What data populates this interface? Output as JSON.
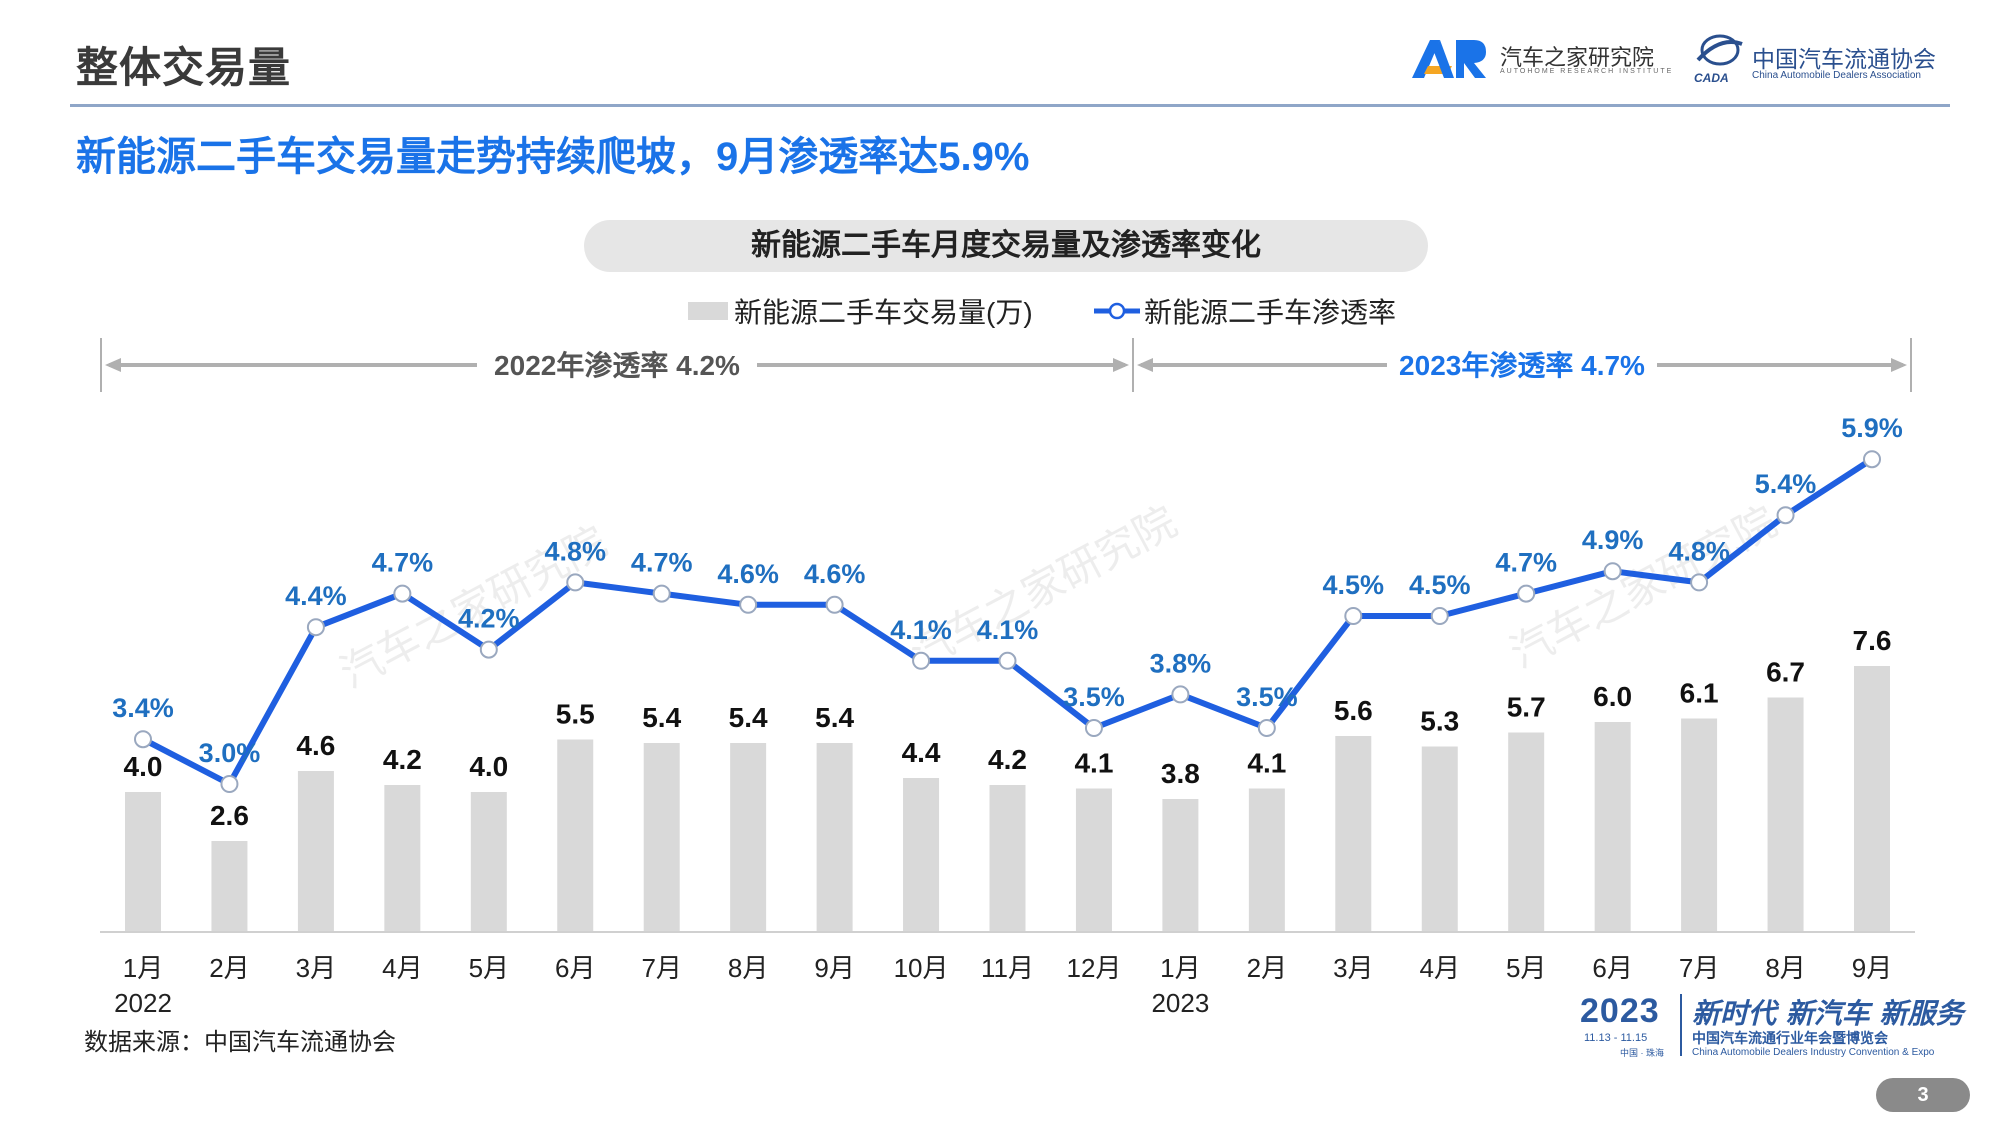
{
  "header": {
    "section_title": "整体交易量",
    "logo_ar_name": "汽车之家研究院",
    "logo_ar_en": "AUTOHOME RESEARCH INSTITUTE",
    "logo_cada_name": "中国汽车流通协会",
    "logo_cada_en": "China Automobile Dealers Association",
    "logo_cada_mark": "CADA"
  },
  "headline": "新能源二手车交易量走势持续爬坡，9月渗透率达5.9%",
  "colors": {
    "accent_blue": "#1a73e8",
    "line_blue": "#1f5fe0",
    "label_blue": "#1f6fc0",
    "bar_gray": "#d9d9d9"
  },
  "chart_data": {
    "type": "bar",
    "title": "新能源二手车月度交易量及渗透率变化",
    "categories": [
      "1月",
      "2月",
      "3月",
      "4月",
      "5月",
      "6月",
      "7月",
      "8月",
      "9月",
      "10月",
      "11月",
      "12月",
      "1月",
      "2月",
      "3月",
      "4月",
      "5月",
      "6月",
      "7月",
      "8月",
      "9月"
    ],
    "year_labels": [
      {
        "index": 0,
        "label": "2022"
      },
      {
        "index": 12,
        "label": "2023"
      }
    ],
    "series": [
      {
        "name": "新能源二手车交易量(万)",
        "type": "bar",
        "values": [
          4.0,
          2.6,
          4.6,
          4.2,
          4.0,
          5.5,
          5.4,
          5.4,
          5.4,
          4.4,
          4.2,
          4.1,
          3.8,
          4.1,
          5.6,
          5.3,
          5.7,
          6.0,
          6.1,
          6.7,
          7.6
        ],
        "labels": [
          "4.0",
          "2.6",
          "4.6",
          "4.2",
          "4.0",
          "5.5",
          "5.4",
          "5.4",
          "5.4",
          "4.4",
          "4.2",
          "4.1",
          "3.8",
          "4.1",
          "5.6",
          "5.3",
          "5.7",
          "6.0",
          "6.1",
          "6.7",
          "7.6"
        ]
      },
      {
        "name": "新能源二手车渗透率",
        "type": "line",
        "unit": "%",
        "values": [
          3.4,
          3.0,
          4.4,
          4.7,
          4.2,
          4.8,
          4.7,
          4.6,
          4.6,
          4.1,
          4.1,
          3.5,
          3.8,
          3.5,
          4.5,
          4.5,
          4.7,
          4.9,
          4.8,
          5.4,
          5.9
        ],
        "labels": [
          "3.4%",
          "3.0%",
          "4.4%",
          "4.7%",
          "4.2%",
          "4.8%",
          "4.7%",
          "4.6%",
          "4.6%",
          "4.1%",
          "4.1%",
          "3.5%",
          "3.8%",
          "3.5%",
          "4.5%",
          "4.5%",
          "4.7%",
          "4.9%",
          "4.8%",
          "5.4%",
          "5.9%"
        ]
      }
    ],
    "annotations": [
      {
        "label": "2022年渗透率  4.2%",
        "from_index": 0,
        "to_index": 11
      },
      {
        "label": "2023年渗透率 4.7%",
        "from_index": 12,
        "to_index": 20
      }
    ],
    "legend_position": "top-center",
    "grid": false,
    "watermark": "汽车之家研究院"
  },
  "footer": {
    "source": "数据来源：中国汽车流通协会",
    "slogan_year": "2023",
    "slogan_dates": "11.13 - 11.15",
    "slogan_place": "中国 · 珠海",
    "slogan_main": "新时代 新汽车 新服务",
    "slogan_sub": "中国汽车流通行业年会暨博览会",
    "slogan_en": "China Automobile Dealers Industry Convention & Expo",
    "page_number": "3"
  }
}
